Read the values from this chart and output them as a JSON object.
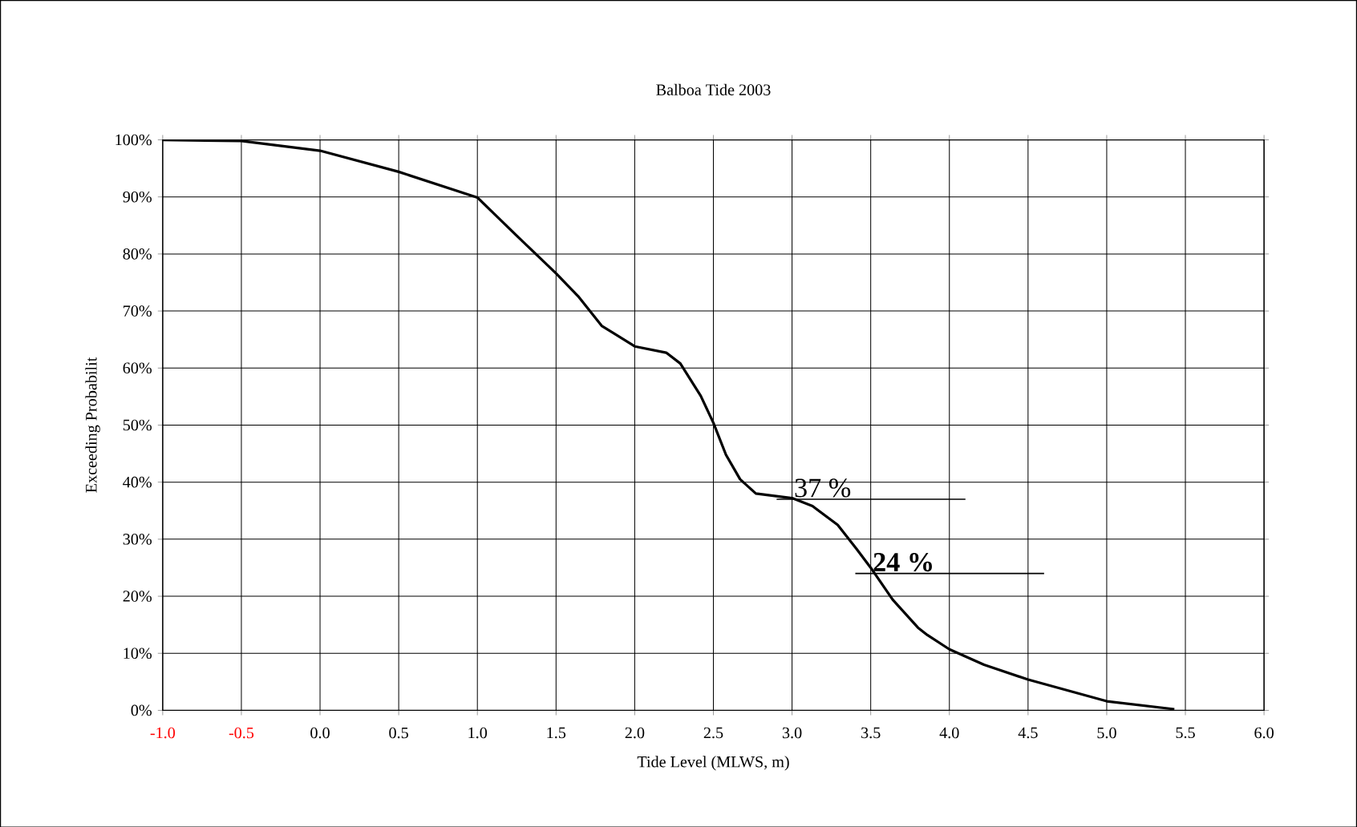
{
  "chart_data": {
    "type": "line",
    "title": "Balboa Tide 2003",
    "xlabel": "Tide Level (MLWS, m)",
    "ylabel": "Exceeding Probabilit",
    "series": [
      {
        "color": "#000000",
        "x": [
          -1.0,
          -0.5,
          0.0,
          0.5,
          1.0,
          1.25,
          1.5,
          1.64,
          1.79,
          2.0,
          2.2,
          2.29,
          2.42,
          2.5,
          2.58,
          2.67,
          2.77,
          3.0,
          3.13,
          3.29,
          3.41,
          3.5,
          3.64,
          3.8,
          3.86,
          4.0,
          4.22,
          4.5,
          5.0,
          5.43
        ],
        "values": [
          100,
          99.8,
          98.1,
          94.4,
          89.9,
          83.2,
          76.6,
          72.6,
          67.4,
          63.8,
          62.7,
          60.8,
          55.1,
          50.4,
          44.8,
          40.5,
          38.0,
          37.2,
          35.8,
          32.5,
          28.3,
          25.0,
          19.4,
          14.5,
          13.2,
          10.7,
          8.0,
          5.4,
          1.6,
          0.2
        ]
      }
    ],
    "xlim": [
      -1.0,
      6.0
    ],
    "xticks": [
      {
        "value": -1.0,
        "label": "-1.0"
      },
      {
        "value": -0.5,
        "label": "-0.5"
      },
      {
        "value": 0.0,
        "label": "0.0"
      },
      {
        "value": 0.5,
        "label": "0.5"
      },
      {
        "value": 1.0,
        "label": "1.0"
      },
      {
        "value": 1.5,
        "label": "1.5"
      },
      {
        "value": 2.0,
        "label": "2.0"
      },
      {
        "value": 2.5,
        "label": "2.5"
      },
      {
        "value": 3.0,
        "label": "3.0"
      },
      {
        "value": 3.5,
        "label": "3.5"
      },
      {
        "value": 4.0,
        "label": "4.0"
      },
      {
        "value": 4.5,
        "label": "4.5"
      },
      {
        "value": 5.0,
        "label": "5.0"
      },
      {
        "value": 5.5,
        "label": "5.5"
      },
      {
        "value": 6.0,
        "label": "6.0"
      }
    ],
    "ylim": [
      0,
      100
    ],
    "yticks": [
      {
        "value": 0,
        "label": "0%"
      },
      {
        "value": 10,
        "label": "10%"
      },
      {
        "value": 20,
        "label": "20%"
      },
      {
        "value": 30,
        "label": "30%"
      },
      {
        "value": 40,
        "label": "40%"
      },
      {
        "value": 50,
        "label": "50%"
      },
      {
        "value": 60,
        "label": "60%"
      },
      {
        "value": 70,
        "label": "70%"
      },
      {
        "value": 80,
        "label": "80%"
      },
      {
        "value": 90,
        "label": "90%"
      },
      {
        "value": 100,
        "label": "100%"
      }
    ],
    "grid": true,
    "marker": "none",
    "line_style": "solid",
    "annotations": [
      {
        "text": "37 %",
        "x": 3.0,
        "y": 37
      },
      {
        "text": "**24 %**",
        "x": 3.5,
        "y": 24
      }
    ]
  }
}
